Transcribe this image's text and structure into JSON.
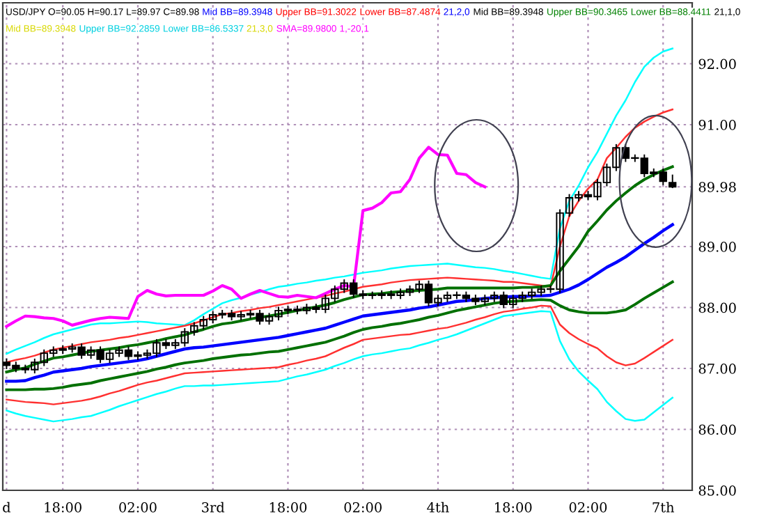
{
  "chart_data": {
    "type": "candlestick",
    "grid": true,
    "legend": false,
    "ylim": [
      85,
      93
    ],
    "yticks": [
      {
        "value": 85,
        "label": "85.00"
      },
      {
        "value": 86,
        "label": "86.00"
      },
      {
        "value": 87,
        "label": "87.00"
      },
      {
        "value": 88,
        "label": "88.00"
      },
      {
        "value": 89,
        "label": "89.00"
      },
      {
        "value": 89.98,
        "label": "89.98"
      },
      {
        "value": 91,
        "label": "91.00"
      },
      {
        "value": 92,
        "label": "92.00"
      }
    ],
    "annotations": [
      "USD/JPY O=90.05 H=90.17 L=89.97 C=89.98",
      "Mid BB=89.3948",
      "Upper BB=91.3022",
      "Lower BB=87.4874",
      "21,2,0",
      "Mid BB=89.3948",
      "Upper BB=90.3465",
      "Lower BB=88.4411",
      "21,1,0",
      "Mid BB=89.3948",
      "Upper BB=92.2859",
      "Lower BB=86.5337",
      "21,3,0",
      "SMA=89.9800",
      "1,-20,1"
    ],
    "categories": [
      "d",
      null,
      null,
      null,
      null,
      null,
      "18:00",
      null,
      null,
      null,
      null,
      null,
      null,
      null,
      "02:00",
      null,
      null,
      null,
      null,
      null,
      null,
      null,
      "3rd",
      null,
      null,
      null,
      null,
      null,
      null,
      null,
      "18:00",
      null,
      null,
      null,
      null,
      null,
      null,
      null,
      "02:00",
      null,
      null,
      null,
      null,
      null,
      null,
      null,
      "4th",
      null,
      null,
      null,
      null,
      null,
      null,
      null,
      "18:00",
      null,
      null,
      null,
      null,
      null,
      null,
      null,
      "02:00",
      null,
      null,
      null,
      null,
      null,
      null,
      null,
      "7th",
      null
    ],
    "ohlc": [
      [
        87.1,
        87.15,
        87.0,
        87.05
      ],
      [
        87.05,
        87.1,
        86.95,
        87.0
      ],
      [
        87.0,
        87.05,
        86.93,
        86.98
      ],
      [
        86.98,
        87.15,
        86.93,
        87.1
      ],
      [
        87.1,
        87.3,
        87.05,
        87.25
      ],
      [
        87.25,
        87.35,
        87.2,
        87.3
      ],
      [
        87.3,
        87.37,
        87.25,
        87.32
      ],
      [
        87.32,
        87.4,
        87.27,
        87.35
      ],
      [
        87.35,
        87.4,
        87.17,
        87.22
      ],
      [
        87.22,
        87.35,
        87.17,
        87.3
      ],
      [
        87.3,
        87.35,
        87.1,
        87.15
      ],
      [
        87.15,
        87.3,
        87.1,
        87.25
      ],
      [
        87.25,
        87.35,
        87.2,
        87.3
      ],
      [
        87.3,
        87.35,
        87.15,
        87.2
      ],
      [
        87.2,
        87.27,
        87.15,
        87.22
      ],
      [
        87.22,
        87.3,
        87.17,
        87.25
      ],
      [
        87.25,
        87.47,
        87.2,
        87.42
      ],
      [
        87.42,
        87.47,
        87.33,
        87.38
      ],
      [
        87.38,
        87.47,
        87.33,
        87.42
      ],
      [
        87.42,
        87.65,
        87.37,
        87.6
      ],
      [
        87.6,
        87.75,
        87.55,
        87.7
      ],
      [
        87.7,
        87.85,
        87.65,
        87.8
      ],
      [
        87.8,
        87.93,
        87.75,
        87.88
      ],
      [
        87.88,
        87.95,
        87.83,
        87.9
      ],
      [
        87.9,
        87.95,
        87.8,
        87.85
      ],
      [
        87.85,
        87.93,
        87.8,
        87.88
      ],
      [
        87.88,
        87.95,
        87.83,
        87.9
      ],
      [
        87.9,
        87.95,
        87.73,
        87.78
      ],
      [
        87.78,
        87.9,
        87.73,
        87.85
      ],
      [
        87.85,
        88.0,
        87.8,
        87.95
      ],
      [
        87.95,
        88.02,
        87.9,
        87.97
      ],
      [
        87.97,
        88.02,
        87.9,
        87.95
      ],
      [
        87.95,
        88.05,
        87.9,
        88.0
      ],
      [
        88.0,
        88.05,
        87.92,
        87.97
      ],
      [
        87.97,
        88.2,
        87.92,
        88.15
      ],
      [
        88.15,
        88.35,
        88.1,
        88.3
      ],
      [
        88.3,
        88.45,
        88.25,
        88.4
      ],
      [
        88.4,
        88.45,
        88.17,
        88.22
      ],
      [
        88.22,
        88.27,
        88.15,
        88.2
      ],
      [
        88.2,
        88.25,
        88.15,
        88.2
      ],
      [
        88.2,
        88.27,
        88.15,
        88.22
      ],
      [
        88.22,
        88.27,
        88.15,
        88.2
      ],
      [
        88.2,
        88.3,
        88.15,
        88.25
      ],
      [
        88.25,
        88.35,
        88.2,
        88.3
      ],
      [
        88.3,
        88.43,
        88.25,
        88.38
      ],
      [
        88.38,
        88.43,
        88.03,
        88.08
      ],
      [
        88.08,
        88.2,
        88.03,
        88.15
      ],
      [
        88.15,
        88.25,
        88.1,
        88.2
      ],
      [
        88.2,
        88.25,
        88.15,
        88.2
      ],
      [
        88.2,
        88.25,
        88.1,
        88.15
      ],
      [
        88.15,
        88.2,
        88.05,
        88.1
      ],
      [
        88.1,
        88.2,
        88.05,
        88.15
      ],
      [
        88.15,
        88.25,
        88.1,
        88.2
      ],
      [
        88.2,
        88.25,
        88.0,
        88.05
      ],
      [
        88.05,
        88.2,
        88.0,
        88.15
      ],
      [
        88.15,
        88.25,
        88.1,
        88.2
      ],
      [
        88.2,
        88.3,
        88.15,
        88.25
      ],
      [
        88.25,
        88.35,
        88.2,
        88.3
      ],
      [
        88.3,
        88.35,
        88.25,
        88.3
      ],
      [
        88.3,
        89.6,
        88.25,
        89.55
      ],
      [
        89.55,
        89.85,
        89.5,
        89.8
      ],
      [
        89.8,
        89.9,
        89.75,
        89.85
      ],
      [
        89.85,
        89.9,
        89.77,
        89.82
      ],
      [
        89.82,
        90.1,
        89.77,
        90.05
      ],
      [
        90.05,
        90.35,
        90.0,
        90.3
      ],
      [
        90.3,
        90.67,
        90.25,
        90.62
      ],
      [
        90.62,
        90.67,
        90.4,
        90.45
      ],
      [
        90.45,
        90.5,
        90.4,
        90.45
      ],
      [
        90.45,
        90.5,
        90.15,
        90.2
      ],
      [
        90.2,
        90.27,
        90.15,
        90.22
      ],
      [
        90.22,
        90.27,
        90.02,
        90.07
      ],
      [
        90.05,
        90.17,
        89.97,
        89.98
      ]
    ],
    "series": [
      {
        "type": "line",
        "color": "#00ffff",
        "values": [
          87.24,
          87.31,
          87.37,
          87.43,
          87.5,
          87.56,
          87.6,
          87.64,
          87.68,
          87.72,
          87.74,
          87.74,
          87.75,
          87.76,
          87.77,
          87.76,
          87.74,
          87.73,
          87.72,
          87.71,
          87.79,
          87.89,
          87.98,
          88.07,
          88.12,
          88.16,
          88.21,
          88.25,
          88.3,
          88.34,
          88.36,
          88.39,
          88.41,
          88.44,
          88.46,
          88.49,
          88.51,
          88.54,
          88.57,
          88.59,
          88.61,
          88.64,
          88.66,
          88.68,
          88.69,
          88.7,
          88.71,
          88.72,
          88.7,
          88.68,
          88.66,
          88.65,
          88.63,
          88.6,
          88.58,
          88.55,
          88.52,
          88.49,
          88.47,
          89.3,
          89.75,
          90.0,
          90.3,
          90.55,
          90.85,
          91.15,
          91.4,
          91.7,
          91.95,
          92.1,
          92.2,
          92.25
        ]
      },
      {
        "type": "line",
        "color": "#00ffff",
        "values": [
          86.31,
          86.26,
          86.22,
          86.19,
          86.16,
          86.13,
          86.15,
          86.17,
          86.2,
          86.22,
          86.27,
          86.32,
          86.38,
          86.43,
          86.48,
          86.53,
          86.58,
          86.62,
          86.67,
          86.71,
          86.71,
          86.72,
          86.72,
          86.73,
          86.74,
          86.75,
          86.76,
          86.77,
          86.78,
          86.79,
          86.83,
          86.87,
          86.9,
          86.94,
          86.98,
          87.04,
          87.09,
          87.15,
          87.2,
          87.23,
          87.25,
          87.28,
          87.31,
          87.33,
          87.38,
          87.42,
          87.47,
          87.51,
          87.56,
          87.62,
          87.68,
          87.74,
          87.8,
          87.86,
          87.88,
          87.9,
          87.92,
          87.94,
          87.93,
          87.45,
          87.15,
          86.95,
          86.8,
          86.66,
          86.45,
          86.3,
          86.17,
          86.14,
          86.16,
          86.28,
          86.4,
          86.52
        ]
      },
      {
        "type": "line",
        "color": "#ff3030",
        "values": [
          87.1,
          87.14,
          87.17,
          87.21,
          87.26,
          87.31,
          87.34,
          87.37,
          87.4,
          87.43,
          87.45,
          87.47,
          87.5,
          87.52,
          87.55,
          87.58,
          87.61,
          87.64,
          87.67,
          87.7,
          87.74,
          87.79,
          87.84,
          87.89,
          87.91,
          87.94,
          87.96,
          87.99,
          88.01,
          88.04,
          88.07,
          88.1,
          88.13,
          88.16,
          88.19,
          88.23,
          88.26,
          88.3,
          88.34,
          88.36,
          88.38,
          88.41,
          88.43,
          88.45,
          88.46,
          88.47,
          88.48,
          88.49,
          88.48,
          88.47,
          88.46,
          88.45,
          88.44,
          88.42,
          88.42,
          88.4,
          88.38,
          88.36,
          88.34,
          89.0,
          89.5,
          89.75,
          89.95,
          90.1,
          90.45,
          90.62,
          90.8,
          90.95,
          91.05,
          91.13,
          91.2,
          91.25
        ]
      },
      {
        "type": "line",
        "color": "#ff3030",
        "values": [
          86.49,
          86.47,
          86.45,
          86.44,
          86.43,
          86.41,
          86.43,
          86.45,
          86.47,
          86.5,
          86.54,
          86.59,
          86.63,
          86.68,
          86.73,
          86.77,
          86.8,
          86.84,
          86.88,
          86.92,
          86.93,
          86.94,
          86.95,
          86.96,
          86.97,
          86.98,
          86.99,
          87.0,
          87.01,
          87.02,
          87.06,
          87.09,
          87.13,
          87.16,
          87.2,
          87.27,
          87.34,
          87.4,
          87.47,
          87.49,
          87.51,
          87.53,
          87.55,
          87.56,
          87.59,
          87.62,
          87.65,
          87.67,
          87.71,
          87.75,
          87.8,
          87.84,
          87.89,
          87.93,
          87.95,
          87.98,
          88.0,
          88.03,
          88.02,
          87.72,
          87.58,
          87.48,
          87.4,
          87.33,
          87.2,
          87.1,
          87.05,
          87.08,
          87.17,
          87.27,
          87.37,
          87.47
        ]
      },
      {
        "type": "line",
        "color": "#007000",
        "values": [
          86.94,
          86.98,
          87.01,
          87.07,
          87.12,
          87.17,
          87.19,
          87.22,
          87.25,
          87.28,
          87.3,
          87.32,
          87.34,
          87.37,
          87.39,
          87.42,
          87.45,
          87.49,
          87.52,
          87.55,
          87.6,
          87.64,
          87.69,
          87.73,
          87.75,
          87.78,
          87.81,
          87.84,
          87.86,
          87.89,
          87.92,
          87.95,
          87.98,
          88.01,
          88.04,
          88.08,
          88.13,
          88.17,
          88.21,
          88.22,
          88.23,
          88.25,
          88.26,
          88.27,
          88.28,
          88.29,
          88.3,
          88.32,
          88.32,
          88.32,
          88.32,
          88.32,
          88.32,
          88.32,
          88.32,
          88.33,
          88.33,
          88.34,
          88.36,
          88.6,
          88.8,
          89.0,
          89.25,
          89.42,
          89.6,
          89.75,
          89.88,
          90.0,
          90.1,
          90.18,
          90.25,
          90.31
        ]
      },
      {
        "type": "line",
        "color": "#007000",
        "values": [
          86.65,
          86.65,
          86.65,
          86.66,
          86.66,
          86.67,
          86.69,
          86.72,
          86.74,
          86.76,
          86.8,
          86.83,
          86.86,
          86.89,
          86.92,
          86.95,
          86.99,
          87.02,
          87.06,
          87.09,
          87.11,
          87.13,
          87.16,
          87.18,
          87.2,
          87.22,
          87.23,
          87.25,
          87.27,
          87.28,
          87.31,
          87.34,
          87.37,
          87.4,
          87.43,
          87.48,
          87.53,
          87.59,
          87.64,
          87.67,
          87.69,
          87.72,
          87.74,
          87.77,
          87.8,
          87.84,
          87.87,
          87.91,
          87.95,
          87.98,
          88.01,
          88.04,
          88.07,
          88.09,
          88.1,
          88.11,
          88.12,
          88.13,
          88.12,
          88.03,
          87.96,
          87.93,
          87.91,
          87.91,
          87.91,
          87.93,
          87.96,
          88.05,
          88.15,
          88.24,
          88.33,
          88.42
        ]
      },
      {
        "type": "line",
        "color": "#0000ff",
        "values": [
          86.79,
          86.79,
          86.8,
          86.85,
          86.89,
          86.94,
          86.96,
          86.98,
          87.0,
          87.03,
          87.05,
          87.07,
          87.09,
          87.11,
          87.13,
          87.16,
          87.2,
          87.24,
          87.28,
          87.32,
          87.34,
          87.35,
          87.37,
          87.39,
          87.41,
          87.43,
          87.45,
          87.47,
          87.49,
          87.51,
          87.54,
          87.57,
          87.6,
          87.63,
          87.66,
          87.71,
          87.76,
          87.81,
          87.86,
          87.88,
          87.9,
          87.92,
          87.94,
          87.96,
          87.99,
          88.01,
          88.04,
          88.07,
          88.1,
          88.11,
          88.13,
          88.15,
          88.16,
          88.17,
          88.18,
          88.18,
          88.19,
          88.19,
          88.2,
          88.25,
          88.3,
          88.37,
          88.46,
          88.56,
          88.66,
          88.74,
          88.83,
          88.94,
          89.05,
          89.15,
          89.26,
          89.36
        ]
      },
      {
        "type": "line",
        "color": "#ff00ff",
        "values": [
          87.69,
          87.78,
          87.86,
          87.85,
          87.83,
          87.82,
          87.78,
          87.71,
          87.75,
          87.79,
          87.82,
          87.84,
          87.83,
          87.82,
          88.18,
          88.28,
          88.22,
          88.19,
          88.2,
          88.2,
          88.2,
          88.2,
          88.27,
          88.36,
          88.3,
          88.15,
          88.22,
          88.28,
          88.23,
          88.18,
          88.17,
          88.2,
          88.18,
          88.16,
          88.23,
          88.3,
          88.36,
          88.34,
          89.59,
          89.63,
          89.72,
          89.88,
          89.9,
          90.1,
          90.45,
          90.63,
          90.51,
          90.5,
          90.2,
          90.18,
          90.05,
          89.98,
          null,
          null,
          null,
          null,
          null,
          null,
          null,
          null,
          null,
          null,
          null,
          null,
          null,
          null,
          null,
          null,
          null,
          null,
          null,
          null
        ]
      }
    ]
  }
}
